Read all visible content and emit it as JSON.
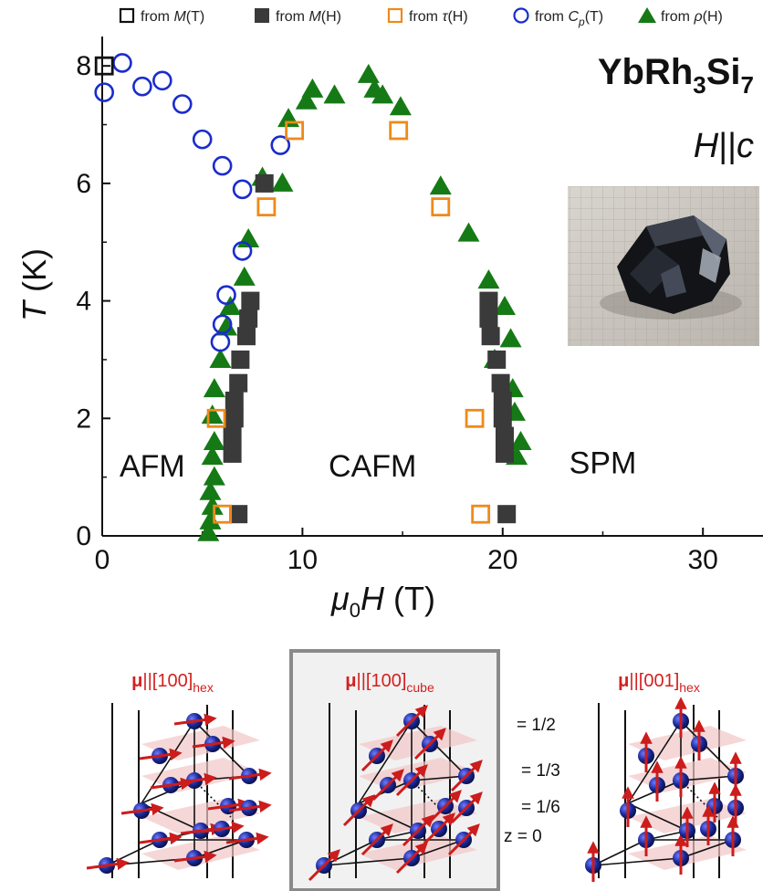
{
  "chart_data": {
    "type": "scatter",
    "title": "",
    "material": {
      "main": "YbRh",
      "sub1": "3",
      "mid": "Si",
      "sub2": "7"
    },
    "field_direction": {
      "pre": "H",
      "bars": "||",
      "post": "c"
    },
    "xlabel": {
      "pre": "μ",
      "sub": "0",
      "var": "H",
      "unit": " (T)"
    },
    "ylabel": {
      "var": "T",
      "unit": " (K)"
    },
    "xlim": [
      0,
      33
    ],
    "ylim": [
      0,
      8.5
    ],
    "xticks": [
      0,
      10,
      20,
      30
    ],
    "yticks": [
      0,
      2,
      4,
      6,
      8
    ],
    "grid": false,
    "legend_position": "top",
    "phase_labels": [
      {
        "text": "AFM",
        "x": 2.5,
        "y": 1.2
      },
      {
        "text": "CAFM",
        "x": 13.5,
        "y": 1.2
      },
      {
        "text": "SPM",
        "x": 25.0,
        "y": 1.25
      }
    ],
    "series": [
      {
        "name": "from M(T)",
        "label_pre": "from ",
        "label_var": "M",
        "label_post": "(T)",
        "marker": "square-open",
        "color": "#111111",
        "points": [
          [
            0.1,
            8.0
          ]
        ]
      },
      {
        "name": "from M(H)",
        "label_pre": "from ",
        "label_var": "M",
        "label_post": "(H)",
        "marker": "square-filled",
        "color": "#3a3a3a",
        "points": [
          [
            8.1,
            6.0
          ],
          [
            7.4,
            4.0
          ],
          [
            7.3,
            3.7
          ],
          [
            7.2,
            3.4
          ],
          [
            6.9,
            3.0
          ],
          [
            6.8,
            2.6
          ],
          [
            6.6,
            2.3
          ],
          [
            6.6,
            2.0
          ],
          [
            6.5,
            1.7
          ],
          [
            6.5,
            1.4
          ],
          [
            6.8,
            0.37
          ],
          [
            19.3,
            4.0
          ],
          [
            19.3,
            3.7
          ],
          [
            19.4,
            3.4
          ],
          [
            19.7,
            3.0
          ],
          [
            19.9,
            2.6
          ],
          [
            20.0,
            2.3
          ],
          [
            20.0,
            2.0
          ],
          [
            20.1,
            1.7
          ],
          [
            20.1,
            1.4
          ],
          [
            20.2,
            0.37
          ]
        ]
      },
      {
        "name": "from τ(H)",
        "label_pre": "from ",
        "label_var": "τ",
        "label_post": "(H)",
        "marker": "square-open",
        "color": "#ee8a1a",
        "points": [
          [
            9.6,
            6.9
          ],
          [
            14.8,
            6.9
          ],
          [
            8.2,
            5.6
          ],
          [
            16.9,
            5.6
          ],
          [
            5.7,
            2.0
          ],
          [
            18.6,
            2.0
          ],
          [
            6.0,
            0.37
          ],
          [
            18.9,
            0.37
          ]
        ]
      },
      {
        "name": "from Cp(T)",
        "label_pre": "from ",
        "label_var": "C",
        "label_varsub": "p",
        "label_post": "(T)",
        "marker": "circle-open",
        "color": "#1a2ccc",
        "points": [
          [
            0.1,
            7.55
          ],
          [
            1.0,
            8.05
          ],
          [
            2.0,
            7.65
          ],
          [
            3.0,
            7.75
          ],
          [
            4.0,
            7.35
          ],
          [
            5.0,
            6.75
          ],
          [
            6.0,
            6.3
          ],
          [
            7.0,
            5.9
          ],
          [
            8.9,
            6.65
          ],
          [
            7.0,
            4.85
          ],
          [
            6.2,
            4.1
          ],
          [
            6.0,
            3.6
          ],
          [
            5.9,
            3.3
          ]
        ]
      },
      {
        "name": "from ρ(H)",
        "label_pre": "from ",
        "label_var": "ρ",
        "label_post": "(H)",
        "marker": "triangle-filled",
        "color": "#157a15",
        "points": [
          [
            9.3,
            7.1
          ],
          [
            10.2,
            7.4
          ],
          [
            10.5,
            7.6
          ],
          [
            11.6,
            7.5
          ],
          [
            13.3,
            7.85
          ],
          [
            13.6,
            7.6
          ],
          [
            14.0,
            7.5
          ],
          [
            14.9,
            7.3
          ],
          [
            9.0,
            6.0
          ],
          [
            8.0,
            6.1
          ],
          [
            16.9,
            5.95
          ],
          [
            18.3,
            5.15
          ],
          [
            7.3,
            5.05
          ],
          [
            7.1,
            4.4
          ],
          [
            19.3,
            4.35
          ],
          [
            6.4,
            3.9
          ],
          [
            6.2,
            3.55
          ],
          [
            5.9,
            3.0
          ],
          [
            5.6,
            2.5
          ],
          [
            5.5,
            2.05
          ],
          [
            5.6,
            1.6
          ],
          [
            5.5,
            1.35
          ],
          [
            5.6,
            1.0
          ],
          [
            5.4,
            0.75
          ],
          [
            5.5,
            0.5
          ],
          [
            5.4,
            0.25
          ],
          [
            5.3,
            0.05
          ],
          [
            19.6,
            3.0
          ],
          [
            20.1,
            3.9
          ],
          [
            20.4,
            3.35
          ],
          [
            20.5,
            2.5
          ],
          [
            20.6,
            2.1
          ],
          [
            20.9,
            1.6
          ],
          [
            20.7,
            1.35
          ]
        ]
      }
    ]
  },
  "inset_photo": {
    "description_icon": "crystal-photo"
  },
  "structures": [
    {
      "mu": "μ",
      "bars": "||[100]",
      "sub": "hex",
      "style": "in-plane-horizontal"
    },
    {
      "mu": "μ",
      "bars": "||[100]",
      "sub": "cube",
      "style": "diagonal",
      "boxed": true
    },
    {
      "mu": "μ",
      "bars": "||[001]",
      "sub": "hex",
      "style": "vertical"
    }
  ],
  "layer_labels": [
    "= 1/2",
    "= 1/3",
    "= 1/6",
    "z = 0"
  ],
  "colors": {
    "structure_title": "#d42020",
    "arrow": "#cc1c1c",
    "sphere": "#1a2a9a",
    "plane": "#f2c6c6",
    "box_bg": "#f1f1f1",
    "box_border": "#8a8a8a"
  }
}
